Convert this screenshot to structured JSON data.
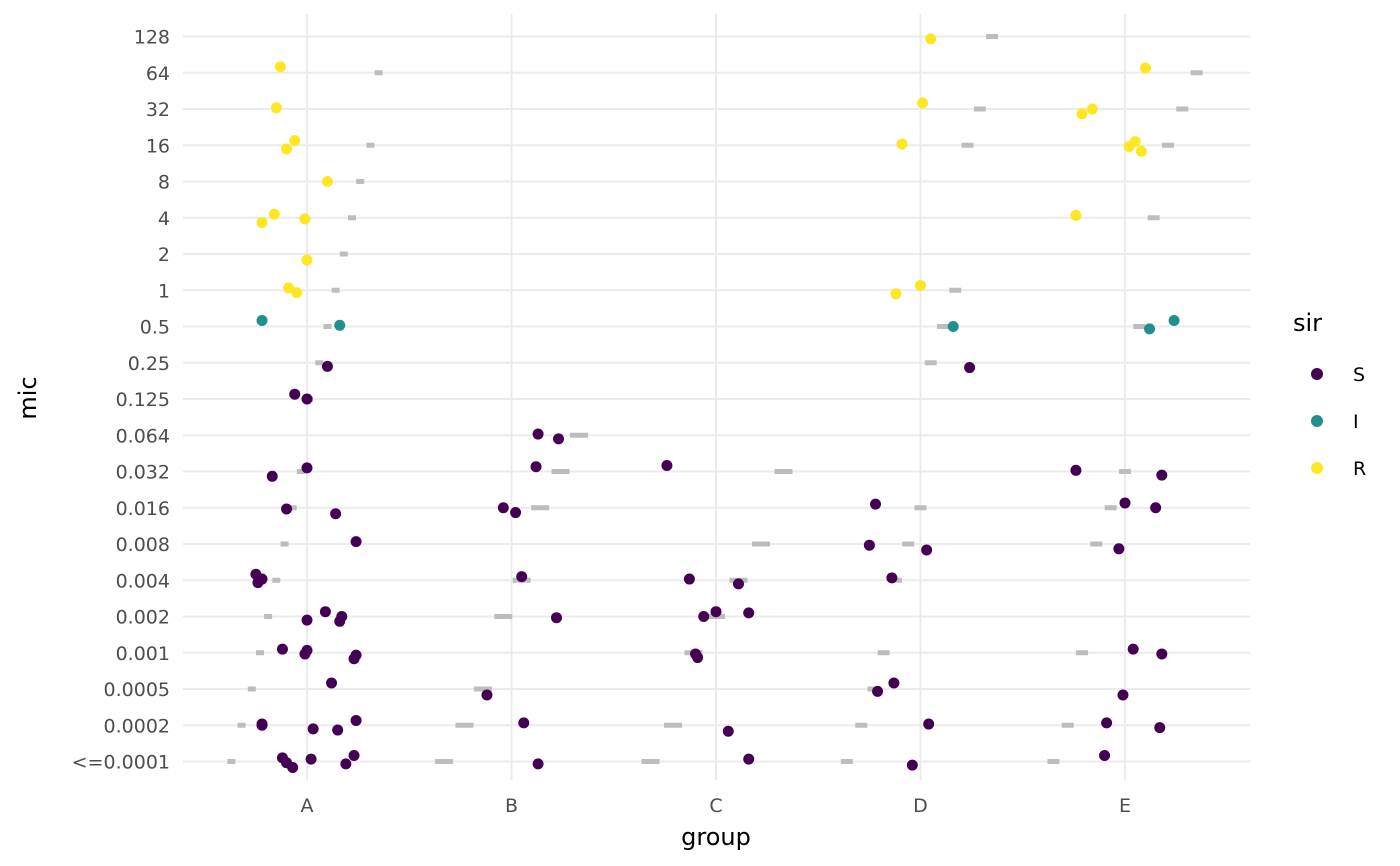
{
  "chart_data": {
    "type": "scatter",
    "xlabel": "group",
    "ylabel": "mic",
    "categories": [
      "A",
      "B",
      "C",
      "D",
      "E"
    ],
    "y_ticks": [
      "<=0.0001",
      "0.0002",
      "0.0005",
      "0.001",
      "0.002",
      "0.004",
      "0.008",
      "0.016",
      "0.032",
      "0.064",
      "0.125",
      "0.25",
      "0.5",
      "1",
      "2",
      "4",
      "8",
      "16",
      "32",
      "64",
      "128"
    ],
    "y_scale": "ordinal (log2 spaced MIC levels)",
    "grid": true,
    "legend": {
      "title": "sir",
      "placement": "right",
      "entries": [
        {
          "label": "S",
          "color": "#440154"
        },
        {
          "label": "I",
          "color": "#21908C"
        },
        {
          "label": "R",
          "color": "#FDE725"
        }
      ]
    },
    "points": [
      {
        "group": "A",
        "mic": "64",
        "sir": "R",
        "jitter": -0.13
      },
      {
        "group": "A",
        "mic": "32",
        "sir": "R",
        "jitter": -0.15
      },
      {
        "group": "A",
        "mic": "16",
        "sir": "R",
        "jitter": -0.1
      },
      {
        "group": "A",
        "mic": "16",
        "sir": "R",
        "jitter": -0.06
      },
      {
        "group": "A",
        "mic": "8",
        "sir": "R",
        "jitter": 0.1
      },
      {
        "group": "A",
        "mic": "4",
        "sir": "R",
        "jitter": -0.22
      },
      {
        "group": "A",
        "mic": "4",
        "sir": "R",
        "jitter": -0.16
      },
      {
        "group": "A",
        "mic": "4",
        "sir": "R",
        "jitter": -0.01
      },
      {
        "group": "A",
        "mic": "2",
        "sir": "R",
        "jitter": 0.0
      },
      {
        "group": "A",
        "mic": "1",
        "sir": "R",
        "jitter": -0.09
      },
      {
        "group": "A",
        "mic": "1",
        "sir": "R",
        "jitter": -0.05
      },
      {
        "group": "A",
        "mic": "0.5",
        "sir": "I",
        "jitter": -0.22
      },
      {
        "group": "A",
        "mic": "0.5",
        "sir": "I",
        "jitter": 0.16
      },
      {
        "group": "A",
        "mic": "0.25",
        "sir": "S",
        "jitter": 0.1
      },
      {
        "group": "A",
        "mic": "0.125",
        "sir": "S",
        "jitter": -0.06
      },
      {
        "group": "A",
        "mic": "0.125",
        "sir": "S",
        "jitter": 0.0
      },
      {
        "group": "A",
        "mic": "0.032",
        "sir": "S",
        "jitter": -0.17
      },
      {
        "group": "A",
        "mic": "0.032",
        "sir": "S",
        "jitter": 0.0
      },
      {
        "group": "A",
        "mic": "0.016",
        "sir": "S",
        "jitter": -0.1
      },
      {
        "group": "A",
        "mic": "0.016",
        "sir": "S",
        "jitter": 0.14
      },
      {
        "group": "A",
        "mic": "0.008",
        "sir": "S",
        "jitter": 0.24
      },
      {
        "group": "A",
        "mic": "0.004",
        "sir": "S",
        "jitter": -0.24
      },
      {
        "group": "A",
        "mic": "0.004",
        "sir": "S",
        "jitter": -0.25
      },
      {
        "group": "A",
        "mic": "0.004",
        "sir": "S",
        "jitter": -0.22
      },
      {
        "group": "A",
        "mic": "0.002",
        "sir": "S",
        "jitter": 0.0
      },
      {
        "group": "A",
        "mic": "0.002",
        "sir": "S",
        "jitter": 0.09
      },
      {
        "group": "A",
        "mic": "0.002",
        "sir": "S",
        "jitter": 0.17
      },
      {
        "group": "A",
        "mic": "0.002",
        "sir": "S",
        "jitter": 0.16
      },
      {
        "group": "A",
        "mic": "0.001",
        "sir": "S",
        "jitter": -0.12
      },
      {
        "group": "A",
        "mic": "0.001",
        "sir": "S",
        "jitter": -0.01
      },
      {
        "group": "A",
        "mic": "0.001",
        "sir": "S",
        "jitter": 0.23
      },
      {
        "group": "A",
        "mic": "0.001",
        "sir": "S",
        "jitter": 0.0
      },
      {
        "group": "A",
        "mic": "0.001",
        "sir": "S",
        "jitter": 0.24
      },
      {
        "group": "A",
        "mic": "0.0005",
        "sir": "S",
        "jitter": 0.12
      },
      {
        "group": "A",
        "mic": "0.0002",
        "sir": "S",
        "jitter": -0.22
      },
      {
        "group": "A",
        "mic": "0.0002",
        "sir": "S",
        "jitter": 0.03
      },
      {
        "group": "A",
        "mic": "0.0002",
        "sir": "S",
        "jitter": 0.24
      },
      {
        "group": "A",
        "mic": "0.0002",
        "sir": "S",
        "jitter": -0.22
      },
      {
        "group": "A",
        "mic": "0.0002",
        "sir": "S",
        "jitter": 0.15
      },
      {
        "group": "A",
        "mic": "<=0.0001",
        "sir": "S",
        "jitter": -0.12
      },
      {
        "group": "A",
        "mic": "<=0.0001",
        "sir": "S",
        "jitter": -0.1
      },
      {
        "group": "A",
        "mic": "<=0.0001",
        "sir": "S",
        "jitter": -0.07
      },
      {
        "group": "A",
        "mic": "<=0.0001",
        "sir": "S",
        "jitter": 0.02
      },
      {
        "group": "A",
        "mic": "<=0.0001",
        "sir": "S",
        "jitter": 0.19
      },
      {
        "group": "A",
        "mic": "<=0.0001",
        "sir": "S",
        "jitter": 0.23
      },
      {
        "group": "B",
        "mic": "0.064",
        "sir": "S",
        "jitter": 0.13
      },
      {
        "group": "B",
        "mic": "0.064",
        "sir": "S",
        "jitter": 0.23
      },
      {
        "group": "B",
        "mic": "0.032",
        "sir": "S",
        "jitter": 0.12
      },
      {
        "group": "B",
        "mic": "0.016",
        "sir": "S",
        "jitter": -0.04
      },
      {
        "group": "B",
        "mic": "0.016",
        "sir": "S",
        "jitter": 0.02
      },
      {
        "group": "B",
        "mic": "0.004",
        "sir": "S",
        "jitter": 0.05
      },
      {
        "group": "B",
        "mic": "0.002",
        "sir": "S",
        "jitter": 0.22
      },
      {
        "group": "B",
        "mic": "0.0005",
        "sir": "S",
        "jitter": -0.12
      },
      {
        "group": "B",
        "mic": "0.0002",
        "sir": "S",
        "jitter": 0.06
      },
      {
        "group": "B",
        "mic": "<=0.0001",
        "sir": "S",
        "jitter": 0.13
      },
      {
        "group": "C",
        "mic": "0.032",
        "sir": "S",
        "jitter": -0.24
      },
      {
        "group": "C",
        "mic": "0.004",
        "sir": "S",
        "jitter": -0.13
      },
      {
        "group": "C",
        "mic": "0.004",
        "sir": "S",
        "jitter": 0.11
      },
      {
        "group": "C",
        "mic": "0.002",
        "sir": "S",
        "jitter": 0.0
      },
      {
        "group": "C",
        "mic": "0.002",
        "sir": "S",
        "jitter": -0.06
      },
      {
        "group": "C",
        "mic": "0.001",
        "sir": "S",
        "jitter": -0.09
      },
      {
        "group": "C",
        "mic": "0.002",
        "sir": "S",
        "jitter": 0.16
      },
      {
        "group": "C",
        "mic": "0.001",
        "sir": "S",
        "jitter": -0.1
      },
      {
        "group": "C",
        "mic": "0.0002",
        "sir": "S",
        "jitter": 0.06
      },
      {
        "group": "C",
        "mic": "<=0.0001",
        "sir": "S",
        "jitter": 0.16
      },
      {
        "group": "D",
        "mic": "128",
        "sir": "R",
        "jitter": 0.05
      },
      {
        "group": "D",
        "mic": "32",
        "sir": "R",
        "jitter": 0.01
      },
      {
        "group": "D",
        "mic": "16",
        "sir": "R",
        "jitter": -0.09
      },
      {
        "group": "D",
        "mic": "1",
        "sir": "R",
        "jitter": -0.12
      },
      {
        "group": "D",
        "mic": "1",
        "sir": "R",
        "jitter": 0.0
      },
      {
        "group": "D",
        "mic": "0.5",
        "sir": "I",
        "jitter": 0.16
      },
      {
        "group": "D",
        "mic": "0.25",
        "sir": "S",
        "jitter": 0.24
      },
      {
        "group": "D",
        "mic": "0.016",
        "sir": "S",
        "jitter": -0.22
      },
      {
        "group": "D",
        "mic": "0.008",
        "sir": "S",
        "jitter": -0.25
      },
      {
        "group": "D",
        "mic": "0.008",
        "sir": "S",
        "jitter": 0.03
      },
      {
        "group": "D",
        "mic": "0.004",
        "sir": "S",
        "jitter": -0.14
      },
      {
        "group": "D",
        "mic": "0.0005",
        "sir": "S",
        "jitter": -0.21
      },
      {
        "group": "D",
        "mic": "0.0005",
        "sir": "S",
        "jitter": -0.13
      },
      {
        "group": "D",
        "mic": "0.0002",
        "sir": "S",
        "jitter": 0.04
      },
      {
        "group": "D",
        "mic": "<=0.0001",
        "sir": "S",
        "jitter": -0.04
      },
      {
        "group": "E",
        "mic": "64",
        "sir": "R",
        "jitter": 0.1
      },
      {
        "group": "E",
        "mic": "32",
        "sir": "R",
        "jitter": -0.16
      },
      {
        "group": "E",
        "mic": "32",
        "sir": "R",
        "jitter": -0.21
      },
      {
        "group": "E",
        "mic": "16",
        "sir": "R",
        "jitter": 0.05
      },
      {
        "group": "E",
        "mic": "16",
        "sir": "R",
        "jitter": 0.02
      },
      {
        "group": "E",
        "mic": "16",
        "sir": "R",
        "jitter": 0.08
      },
      {
        "group": "E",
        "mic": "4",
        "sir": "R",
        "jitter": -0.24
      },
      {
        "group": "E",
        "mic": "0.5",
        "sir": "I",
        "jitter": 0.12
      },
      {
        "group": "E",
        "mic": "0.5",
        "sir": "I",
        "jitter": 0.24
      },
      {
        "group": "E",
        "mic": "0.032",
        "sir": "S",
        "jitter": -0.24
      },
      {
        "group": "E",
        "mic": "0.032",
        "sir": "S",
        "jitter": 0.18
      },
      {
        "group": "E",
        "mic": "0.016",
        "sir": "S",
        "jitter": 0.0
      },
      {
        "group": "E",
        "mic": "0.016",
        "sir": "S",
        "jitter": 0.15
      },
      {
        "group": "E",
        "mic": "0.008",
        "sir": "S",
        "jitter": -0.03
      },
      {
        "group": "E",
        "mic": "0.001",
        "sir": "S",
        "jitter": 0.04
      },
      {
        "group": "E",
        "mic": "0.001",
        "sir": "S",
        "jitter": 0.18
      },
      {
        "group": "E",
        "mic": "0.0005",
        "sir": "S",
        "jitter": -0.01
      },
      {
        "group": "E",
        "mic": "0.0002",
        "sir": "S",
        "jitter": -0.09
      },
      {
        "group": "E",
        "mic": "0.0002",
        "sir": "S",
        "jitter": 0.17
      },
      {
        "group": "E",
        "mic": "<=0.0001",
        "sir": "S",
        "jitter": -0.1
      }
    ],
    "gray_markers": {
      "color": "#bdbdbd",
      "marks": [
        {
          "group": "A",
          "x_offset": -0.37,
          "mic": "<=0.0001"
        },
        {
          "group": "A",
          "x_offset": -0.32,
          "mic": "0.0002"
        },
        {
          "group": "A",
          "x_offset": -0.27,
          "mic": "0.0005"
        },
        {
          "group": "A",
          "x_offset": -0.23,
          "mic": "0.001"
        },
        {
          "group": "A",
          "x_offset": -0.19,
          "mic": "0.002"
        },
        {
          "group": "A",
          "x_offset": -0.15,
          "mic": "0.004"
        },
        {
          "group": "A",
          "x_offset": -0.11,
          "mic": "0.008"
        },
        {
          "group": "A",
          "x_offset": -0.07,
          "mic": "0.016"
        },
        {
          "group": "A",
          "x_offset": -0.03,
          "mic": "0.032"
        },
        {
          "group": "A",
          "x_offset": 0.01,
          "mic": "0.125"
        },
        {
          "group": "A",
          "x_offset": 0.06,
          "mic": "0.25"
        },
        {
          "group": "A",
          "x_offset": 0.1,
          "mic": "0.5"
        },
        {
          "group": "A",
          "x_offset": 0.14,
          "mic": "1"
        },
        {
          "group": "A",
          "x_offset": 0.18,
          "mic": "2"
        },
        {
          "group": "A",
          "x_offset": 0.22,
          "mic": "4"
        },
        {
          "group": "A",
          "x_offset": 0.26,
          "mic": "8"
        },
        {
          "group": "A",
          "x_offset": 0.31,
          "mic": "16"
        },
        {
          "group": "A",
          "x_offset": 0.35,
          "mic": "64"
        },
        {
          "group": "B",
          "x_offset": -0.33,
          "mic": "<=0.0001"
        },
        {
          "group": "B",
          "x_offset": -0.23,
          "mic": "0.0002"
        },
        {
          "group": "B",
          "x_offset": -0.14,
          "mic": "0.0005"
        },
        {
          "group": "B",
          "x_offset": -0.04,
          "mic": "0.002"
        },
        {
          "group": "B",
          "x_offset": 0.05,
          "mic": "0.004"
        },
        {
          "group": "B",
          "x_offset": 0.14,
          "mic": "0.016"
        },
        {
          "group": "B",
          "x_offset": 0.24,
          "mic": "0.032"
        },
        {
          "group": "B",
          "x_offset": 0.33,
          "mic": "0.064"
        },
        {
          "group": "C",
          "x_offset": -0.32,
          "mic": "<=0.0001"
        },
        {
          "group": "C",
          "x_offset": -0.21,
          "mic": "0.0002"
        },
        {
          "group": "C",
          "x_offset": -0.11,
          "mic": "0.001"
        },
        {
          "group": "C",
          "x_offset": 0.0,
          "mic": "0.002"
        },
        {
          "group": "C",
          "x_offset": 0.11,
          "mic": "0.004"
        },
        {
          "group": "C",
          "x_offset": 0.22,
          "mic": "0.008"
        },
        {
          "group": "C",
          "x_offset": 0.33,
          "mic": "0.032"
        },
        {
          "group": "D",
          "x_offset": -0.36,
          "mic": "<=0.0001"
        },
        {
          "group": "D",
          "x_offset": -0.29,
          "mic": "0.0002"
        },
        {
          "group": "D",
          "x_offset": -0.23,
          "mic": "0.0005"
        },
        {
          "group": "D",
          "x_offset": -0.18,
          "mic": "0.001"
        },
        {
          "group": "D",
          "x_offset": -0.12,
          "mic": "0.004"
        },
        {
          "group": "D",
          "x_offset": -0.06,
          "mic": "0.008"
        },
        {
          "group": "D",
          "x_offset": 0.0,
          "mic": "0.016"
        },
        {
          "group": "D",
          "x_offset": 0.05,
          "mic": "0.25"
        },
        {
          "group": "D",
          "x_offset": 0.11,
          "mic": "0.5"
        },
        {
          "group": "D",
          "x_offset": 0.17,
          "mic": "1"
        },
        {
          "group": "D",
          "x_offset": 0.23,
          "mic": "16"
        },
        {
          "group": "D",
          "x_offset": 0.29,
          "mic": "32"
        },
        {
          "group": "D",
          "x_offset": 0.35,
          "mic": "128"
        },
        {
          "group": "E",
          "x_offset": -0.35,
          "mic": "<=0.0001"
        },
        {
          "group": "E",
          "x_offset": -0.28,
          "mic": "0.0002"
        },
        {
          "group": "E",
          "x_offset": -0.21,
          "mic": "0.001"
        },
        {
          "group": "E",
          "x_offset": -0.14,
          "mic": "0.008"
        },
        {
          "group": "E",
          "x_offset": -0.07,
          "mic": "0.016"
        },
        {
          "group": "E",
          "x_offset": 0.0,
          "mic": "0.032"
        },
        {
          "group": "E",
          "x_offset": 0.07,
          "mic": "0.5"
        },
        {
          "group": "E",
          "x_offset": 0.14,
          "mic": "4"
        },
        {
          "group": "E",
          "x_offset": 0.21,
          "mic": "16"
        },
        {
          "group": "E",
          "x_offset": 0.28,
          "mic": "32"
        },
        {
          "group": "E",
          "x_offset": 0.35,
          "mic": "64"
        }
      ]
    }
  }
}
